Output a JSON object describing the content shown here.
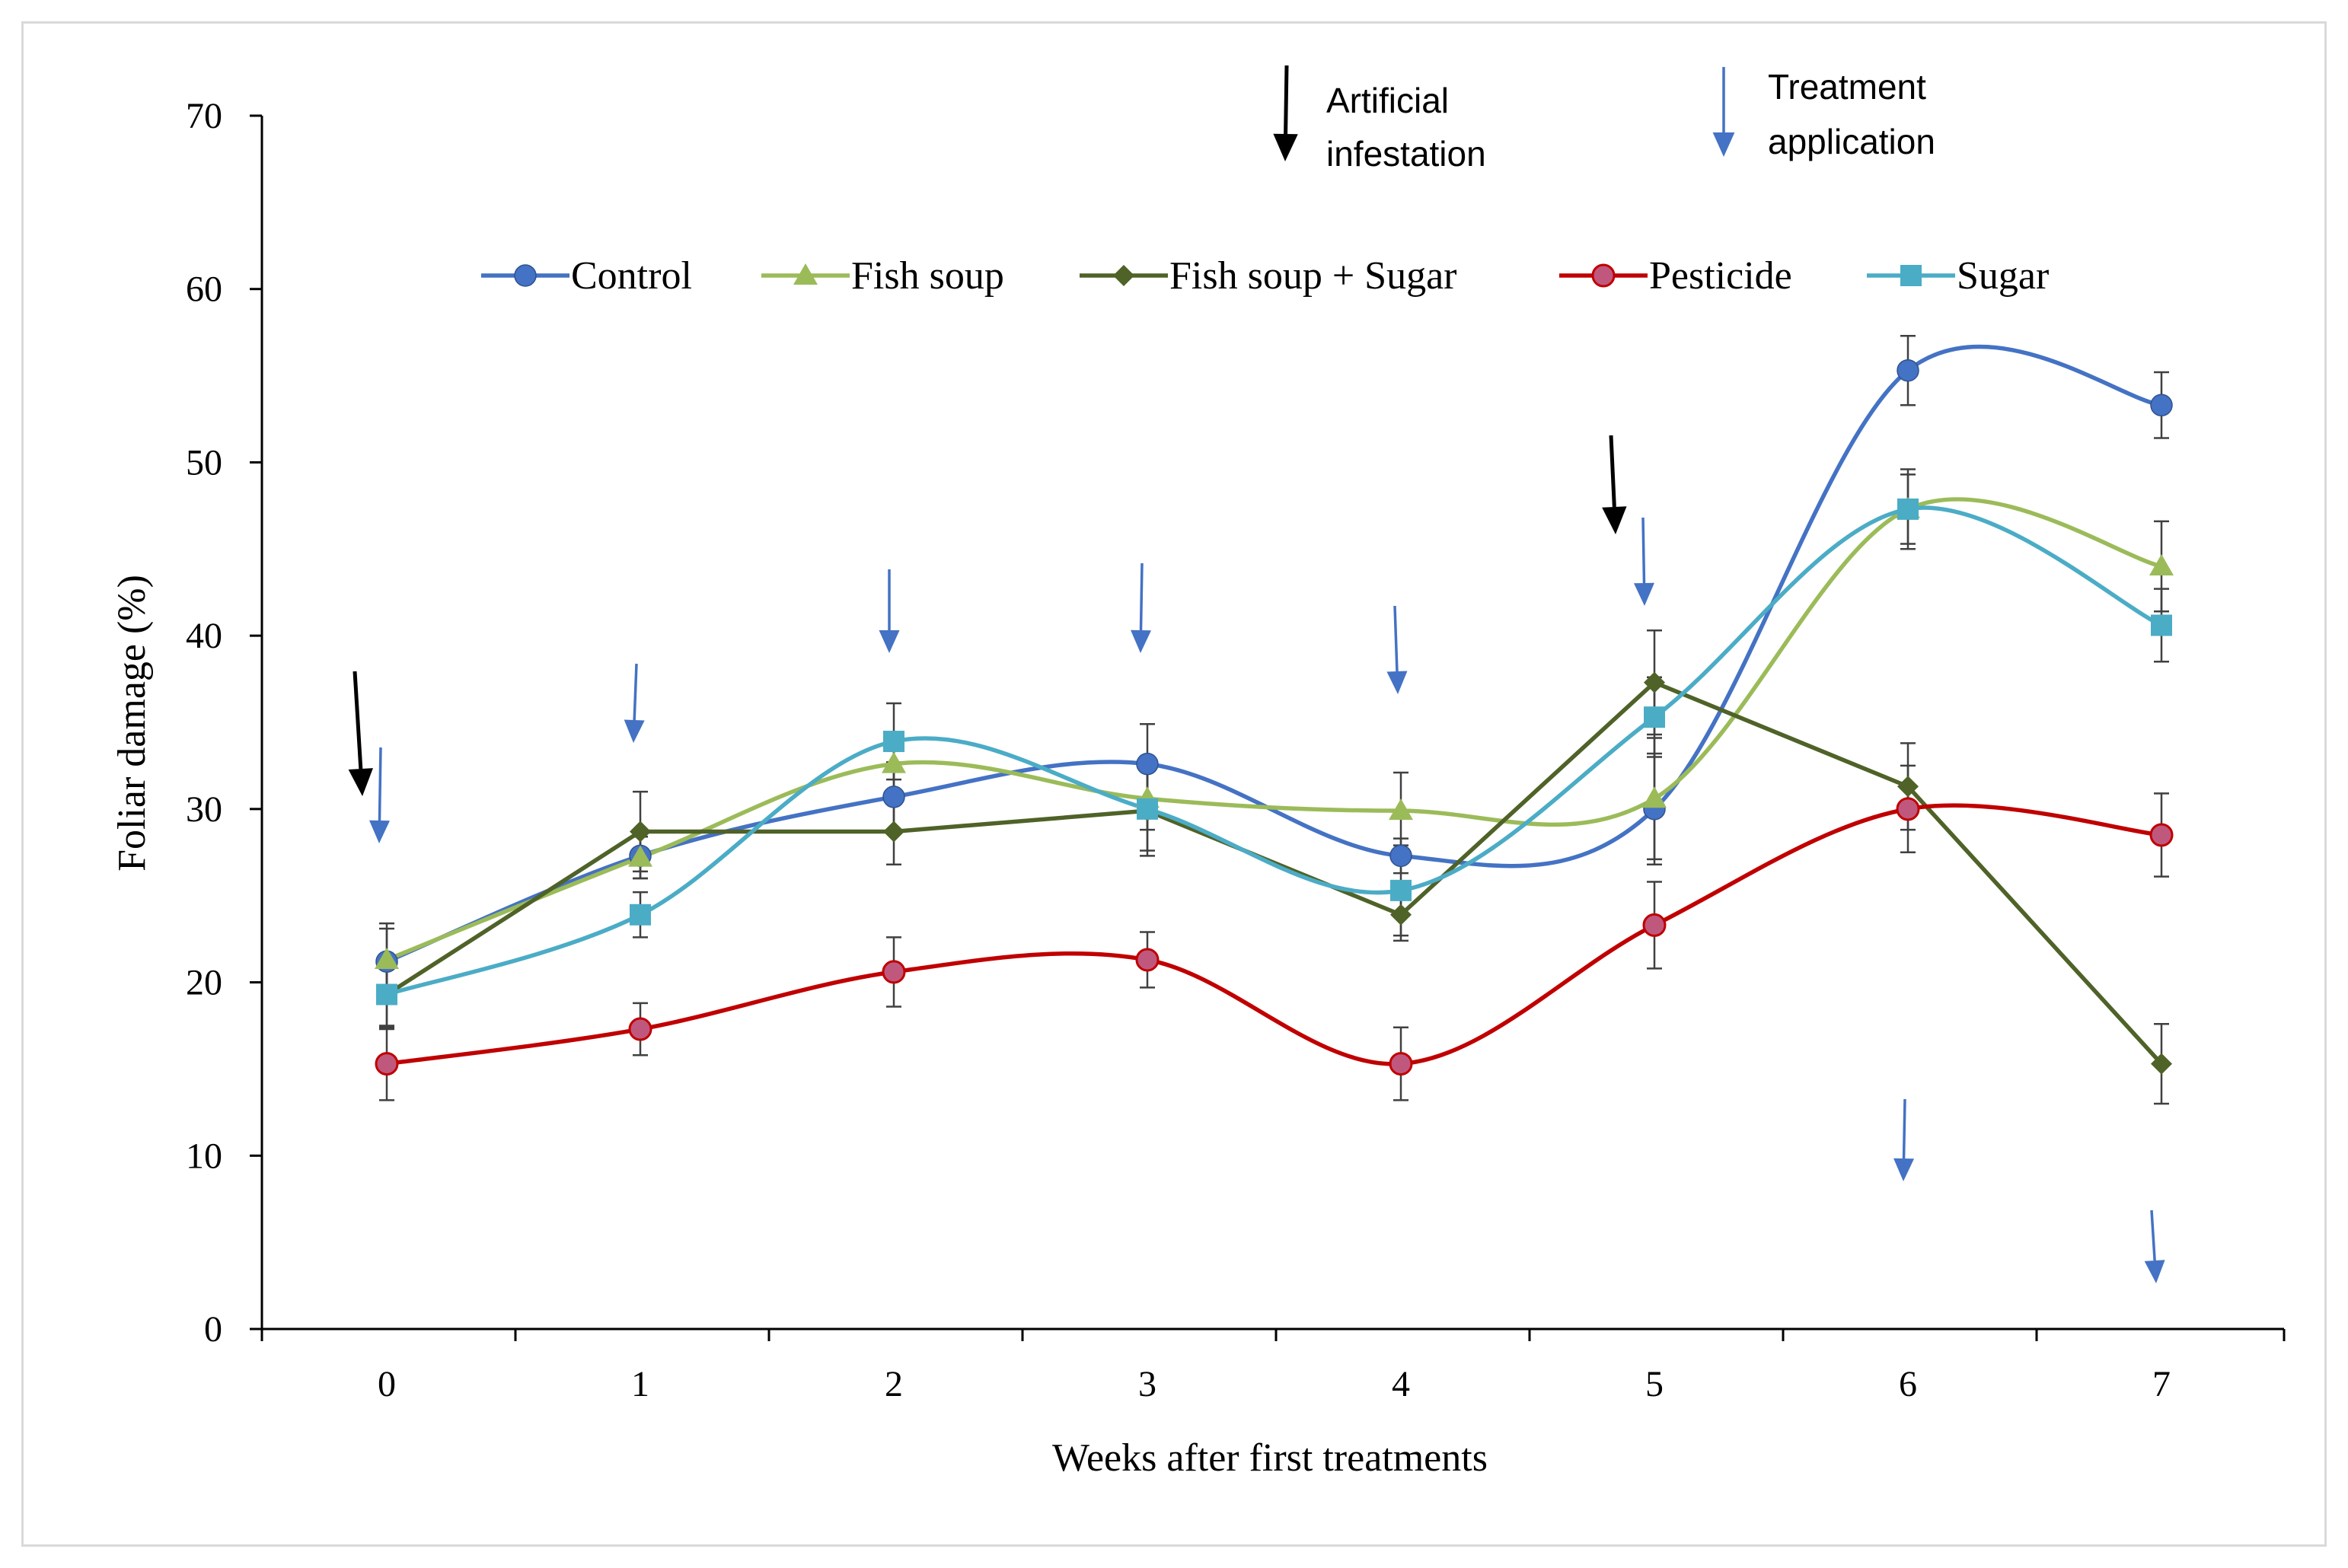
{
  "chart_data": {
    "type": "line",
    "xlabel": "Weeks after first treatments",
    "ylabel": "Foliar damage (%)",
    "ylim": [
      0,
      70
    ],
    "yticks": [
      0,
      10,
      20,
      30,
      40,
      50,
      60,
      70
    ],
    "x": [
      0,
      1,
      2,
      3,
      4,
      5,
      6,
      7
    ],
    "legend_position": "top",
    "series": [
      {
        "name": "Control",
        "color": "#4472C4",
        "marker": "circle",
        "smooth": true,
        "values": [
          21.2,
          27.3,
          30.7,
          32.6,
          27.3,
          30.0,
          55.3,
          53.3
        ],
        "errors": [
          2.2,
          1.3,
          2.0,
          2.3,
          1.0,
          3.2,
          2.0,
          1.9
        ]
      },
      {
        "name": "Fish soup",
        "color": "#9BBB59",
        "marker": "triangle",
        "smooth": true,
        "values": [
          21.3,
          27.2,
          32.6,
          30.6,
          29.9,
          30.6,
          47.3,
          44.0
        ],
        "errors": [
          1.8,
          1.2,
          1.5,
          1.8,
          2.2,
          3.5,
          2.3,
          2.6
        ]
      },
      {
        "name": "Fish soup + Sugar",
        "color": "#4F6228",
        "marker": "diamond",
        "smooth": false,
        "values": [
          19.3,
          28.7,
          28.7,
          29.9,
          23.9,
          37.3,
          31.3,
          15.3
        ],
        "errors": [
          1.8,
          2.3,
          1.9,
          2.6,
          1.5,
          3.0,
          2.5,
          2.3
        ]
      },
      {
        "name": "Pesticide",
        "color": "#C00000",
        "marker": "circle-pink",
        "smooth": true,
        "values": [
          15.3,
          17.3,
          20.6,
          21.3,
          15.3,
          23.3,
          30.0,
          28.5
        ],
        "errors": [
          2.1,
          1.5,
          2.0,
          1.6,
          2.1,
          2.5,
          2.5,
          2.4
        ]
      },
      {
        "name": "Sugar",
        "color": "#4BACC6",
        "marker": "square",
        "smooth": true,
        "values": [
          19.3,
          23.9,
          33.9,
          30.0,
          25.3,
          35.3,
          47.3,
          40.6
        ],
        "errors": [
          2.0,
          1.3,
          2.2,
          2.4,
          2.6,
          2.3,
          2.0,
          2.1
        ]
      }
    ],
    "annotations": {
      "infestation_label": [
        "Artificial",
        "infestation"
      ],
      "treatment_label": [
        "Treatment",
        "application"
      ],
      "infestation_weeks": [
        0,
        5
      ],
      "treatment_weeks": [
        0,
        1,
        2,
        3,
        4,
        5,
        6,
        7
      ]
    }
  }
}
